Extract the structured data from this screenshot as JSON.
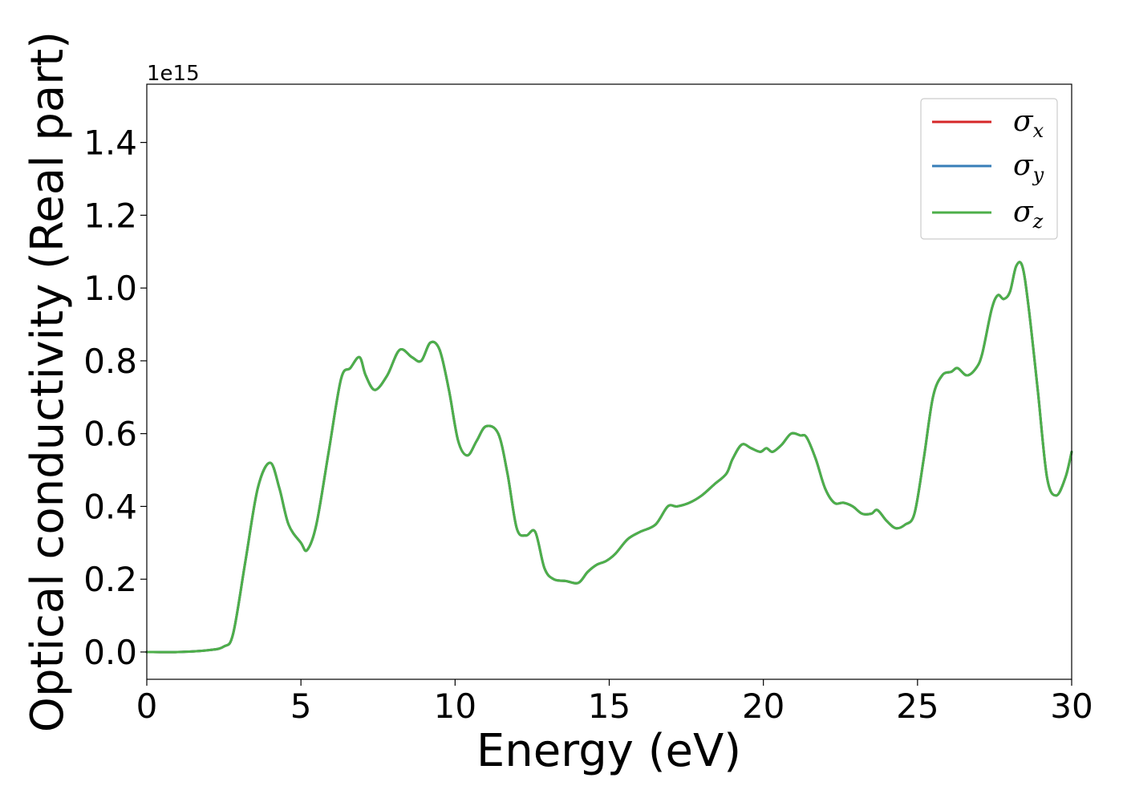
{
  "chart_data": {
    "type": "line",
    "title": "",
    "xlabel": "Energy (eV)",
    "ylabel": "Optical conductivity (Real part)",
    "y_offset_label": "1e15",
    "xlim": [
      0,
      30
    ],
    "ylim": [
      -0.075,
      1.56
    ],
    "xticks": [
      0,
      5,
      10,
      15,
      20,
      25,
      30
    ],
    "xtick_labels": [
      "0",
      "5",
      "10",
      "15",
      "20",
      "25",
      "30"
    ],
    "yticks": [
      0.0,
      0.2,
      0.4,
      0.6,
      0.8,
      1.0,
      1.2,
      1.4
    ],
    "ytick_labels": [
      "0.0",
      "0.2",
      "0.4",
      "0.6",
      "0.8",
      "1.0",
      "1.2",
      "1.4"
    ],
    "grid": false,
    "legend_position": "top-right",
    "x": [
      0,
      1,
      2,
      2.5,
      2.8,
      3.2,
      3.6,
      4.0,
      4.3,
      4.6,
      5.0,
      5.2,
      5.5,
      5.9,
      6.3,
      6.6,
      6.9,
      7.1,
      7.4,
      7.8,
      8.2,
      8.6,
      8.9,
      9.2,
      9.5,
      9.8,
      10.1,
      10.4,
      10.7,
      11.0,
      11.4,
      11.7,
      12.0,
      12.3,
      12.6,
      12.9,
      13.2,
      13.6,
      14.0,
      14.3,
      14.6,
      14.9,
      15.2,
      15.6,
      16.0,
      16.5,
      16.9,
      17.2,
      17.6,
      18.0,
      18.4,
      18.8,
      19.0,
      19.3,
      19.6,
      19.9,
      20.1,
      20.3,
      20.6,
      20.9,
      21.2,
      21.4,
      21.7,
      22.0,
      22.3,
      22.6,
      22.9,
      23.2,
      23.5,
      23.7,
      24.0,
      24.3,
      24.6,
      24.9,
      25.2,
      25.5,
      25.8,
      26.1,
      26.3,
      26.6,
      26.9,
      27.1,
      27.4,
      27.6,
      27.8,
      28.0,
      28.2,
      28.4,
      28.6,
      28.9,
      29.2,
      29.5,
      29.8,
      30.0
    ],
    "series": [
      {
        "name": "σx",
        "label_base": "σ",
        "label_sub": "x",
        "color": "#d62728",
        "y": [
          0.0,
          0.0,
          0.005,
          0.015,
          0.05,
          0.25,
          0.45,
          0.52,
          0.45,
          0.35,
          0.3,
          0.28,
          0.35,
          0.55,
          0.75,
          0.78,
          0.81,
          0.76,
          0.72,
          0.76,
          0.83,
          0.81,
          0.8,
          0.85,
          0.83,
          0.72,
          0.58,
          0.54,
          0.58,
          0.62,
          0.6,
          0.49,
          0.34,
          0.32,
          0.33,
          0.23,
          0.2,
          0.195,
          0.19,
          0.22,
          0.24,
          0.25,
          0.27,
          0.31,
          0.33,
          0.35,
          0.4,
          0.4,
          0.41,
          0.43,
          0.46,
          0.49,
          0.53,
          0.57,
          0.56,
          0.55,
          0.56,
          0.55,
          0.57,
          0.6,
          0.595,
          0.59,
          0.53,
          0.45,
          0.41,
          0.41,
          0.4,
          0.38,
          0.38,
          0.39,
          0.36,
          0.34,
          0.35,
          0.38,
          0.53,
          0.7,
          0.76,
          0.77,
          0.78,
          0.76,
          0.78,
          0.82,
          0.94,
          0.98,
          0.97,
          0.99,
          1.06,
          1.06,
          0.95,
          0.72,
          0.48,
          0.43,
          0.48,
          0.55
        ]
      },
      {
        "name": "σy",
        "label_base": "σ",
        "label_sub": "y",
        "color": "#377eb8",
        "y": [
          0.0,
          0.0,
          0.005,
          0.015,
          0.05,
          0.25,
          0.45,
          0.52,
          0.45,
          0.35,
          0.3,
          0.28,
          0.35,
          0.55,
          0.75,
          0.78,
          0.81,
          0.76,
          0.72,
          0.76,
          0.83,
          0.81,
          0.8,
          0.85,
          0.83,
          0.72,
          0.58,
          0.54,
          0.58,
          0.62,
          0.6,
          0.49,
          0.34,
          0.32,
          0.33,
          0.23,
          0.2,
          0.195,
          0.19,
          0.22,
          0.24,
          0.25,
          0.27,
          0.31,
          0.33,
          0.35,
          0.4,
          0.4,
          0.41,
          0.43,
          0.46,
          0.49,
          0.53,
          0.57,
          0.56,
          0.55,
          0.56,
          0.55,
          0.57,
          0.6,
          0.595,
          0.59,
          0.53,
          0.45,
          0.41,
          0.41,
          0.4,
          0.38,
          0.38,
          0.39,
          0.36,
          0.34,
          0.35,
          0.38,
          0.53,
          0.7,
          0.76,
          0.77,
          0.78,
          0.76,
          0.78,
          0.82,
          0.94,
          0.98,
          0.97,
          0.99,
          1.06,
          1.06,
          0.95,
          0.72,
          0.48,
          0.43,
          0.48,
          0.55
        ]
      },
      {
        "name": "σz",
        "label_base": "σ",
        "label_sub": "z",
        "color": "#4daf4a",
        "y": [
          0.0,
          0.0,
          0.005,
          0.015,
          0.05,
          0.25,
          0.45,
          0.52,
          0.45,
          0.35,
          0.3,
          0.28,
          0.35,
          0.55,
          0.75,
          0.78,
          0.81,
          0.76,
          0.72,
          0.76,
          0.83,
          0.81,
          0.8,
          0.85,
          0.83,
          0.72,
          0.58,
          0.54,
          0.58,
          0.62,
          0.6,
          0.49,
          0.34,
          0.32,
          0.33,
          0.23,
          0.2,
          0.195,
          0.19,
          0.22,
          0.24,
          0.25,
          0.27,
          0.31,
          0.33,
          0.35,
          0.4,
          0.4,
          0.41,
          0.43,
          0.46,
          0.49,
          0.53,
          0.57,
          0.56,
          0.55,
          0.56,
          0.55,
          0.57,
          0.6,
          0.595,
          0.59,
          0.53,
          0.45,
          0.41,
          0.41,
          0.4,
          0.38,
          0.38,
          0.39,
          0.36,
          0.34,
          0.35,
          0.38,
          0.53,
          0.7,
          0.76,
          0.77,
          0.78,
          0.76,
          0.78,
          0.82,
          0.94,
          0.98,
          0.97,
          0.99,
          1.06,
          1.06,
          0.95,
          0.72,
          0.48,
          0.43,
          0.48,
          0.55
        ]
      }
    ]
  }
}
